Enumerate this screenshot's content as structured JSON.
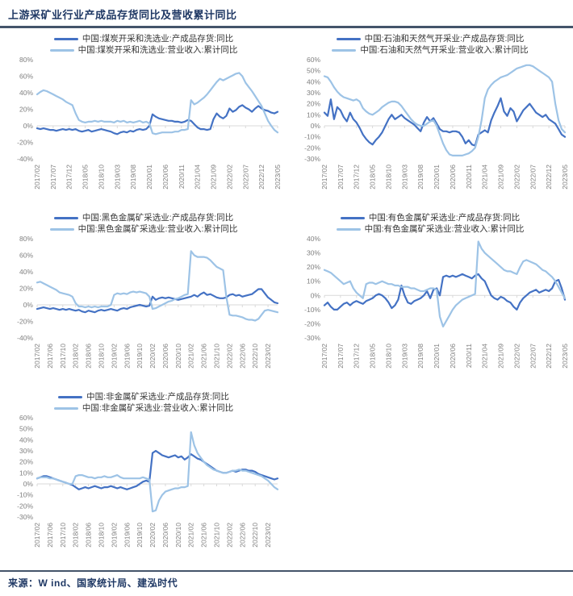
{
  "page": {
    "title": "上游采矿业行业产成品存货同比及营收累计同比",
    "source": "来源：W ind、国家统计局、建泓时代"
  },
  "colors": {
    "inventory_line": "#4472C4",
    "revenue_line": "#9DC3E6",
    "title_text": "#1F3864",
    "rule": "#44546A",
    "axis_text": "#7F7F7F",
    "zero_line": "#D9D9D9"
  },
  "months": [
    "2017/02",
    "2017/03",
    "2017/04",
    "2017/05",
    "2017/06",
    "2017/07",
    "2017/08",
    "2017/09",
    "2017/10",
    "2017/11",
    "2017/12",
    "2018/01",
    "2018/02",
    "2018/03",
    "2018/04",
    "2018/05",
    "2018/06",
    "2018/07",
    "2018/08",
    "2018/09",
    "2018/10",
    "2018/11",
    "2018/12",
    "2019/01",
    "2019/02",
    "2019/03",
    "2019/04",
    "2019/05",
    "2019/06",
    "2019/07",
    "2019/08",
    "2019/09",
    "2019/10",
    "2019/11",
    "2019/12",
    "2020/01",
    "2020/02",
    "2020/03",
    "2020/04",
    "2020/05",
    "2020/06",
    "2020/07",
    "2020/08",
    "2020/09",
    "2020/10",
    "2020/11",
    "2020/12",
    "2021/01",
    "2021/02",
    "2021/03",
    "2021/04",
    "2021/05",
    "2021/06",
    "2021/07",
    "2021/08",
    "2021/09",
    "2021/10",
    "2021/11",
    "2021/12",
    "2022/01",
    "2022/02",
    "2022/03",
    "2022/04",
    "2022/05",
    "2022/06",
    "2022/07",
    "2022/08",
    "2022/09",
    "2022/10",
    "2022/11",
    "2022/12",
    "2023/01",
    "2023/02",
    "2023/03",
    "2023/04",
    "2023/05"
  ],
  "chart_data": [
    {
      "type": "line",
      "industry": "煤炭开采和洗选业",
      "tick_every": 5,
      "ylim": [
        -40,
        80
      ],
      "ytick_step": 20,
      "grid": false,
      "legend_position": "top",
      "series": [
        {
          "name": "中国:煤炭开采和洗选业:产成品存货:同比",
          "color_key": "inventory_line",
          "values": [
            -3,
            -4,
            -3,
            -4,
            -5,
            -5,
            -6,
            -5,
            -4,
            -5,
            -4,
            -5,
            -4,
            -6,
            -7,
            -6,
            -5,
            -7,
            -6,
            -5,
            -4,
            -5,
            -6,
            -7,
            -9,
            -10,
            -8,
            -7,
            -8,
            -6,
            -7,
            -5,
            -4,
            -5,
            -4,
            0,
            14,
            11,
            9,
            8,
            7,
            6,
            6,
            5,
            5,
            4,
            5,
            7,
            6,
            2,
            -2,
            -4,
            -4,
            -5,
            -4,
            8,
            15,
            11,
            9,
            12,
            21,
            17,
            19,
            23,
            25,
            22,
            20,
            17,
            21,
            24,
            21,
            19,
            18,
            16,
            15,
            17
          ]
        },
        {
          "name": "中国:煤炭开采和洗选业:营业收入:累计同比",
          "color_key": "revenue_line",
          "values": [
            38,
            41,
            43,
            42,
            40,
            38,
            36,
            34,
            32,
            29,
            27,
            25,
            15,
            7,
            5,
            4,
            5,
            5,
            6,
            5,
            6,
            5,
            5,
            5,
            4,
            6,
            5,
            6,
            4,
            5,
            4,
            5,
            6,
            4,
            5,
            3,
            -9,
            -10,
            -9,
            -8,
            -8,
            -8,
            -8,
            -7,
            -7,
            -5,
            -5,
            -4,
            31,
            26,
            28,
            31,
            34,
            38,
            43,
            48,
            53,
            57,
            55,
            57,
            59,
            61,
            63,
            64,
            60,
            52,
            47,
            42,
            36,
            30,
            24,
            15,
            6,
            0,
            -5,
            -8
          ]
        }
      ]
    },
    {
      "type": "line",
      "industry": "石油和天然气开采业",
      "tick_every": 5,
      "ylim": [
        -30,
        60
      ],
      "ytick_step": 10,
      "grid": false,
      "legend_position": "top",
      "series": [
        {
          "name": "中国:石油和天然气开采业:产成品存货:同比",
          "color_key": "inventory_line",
          "values": [
            12,
            9,
            24,
            6,
            17,
            14,
            8,
            4,
            12,
            6,
            3,
            -2,
            -8,
            -12,
            -15,
            -17,
            -13,
            -10,
            -6,
            0,
            6,
            10,
            6,
            8,
            10,
            7,
            5,
            3,
            1,
            -2,
            -5,
            3,
            8,
            4,
            7,
            2,
            -3,
            -5,
            -5,
            -6,
            -5,
            -5,
            -6,
            -10,
            -16,
            -13,
            -17,
            -18,
            -8,
            -6,
            -4,
            -6,
            5,
            12,
            18,
            25,
            13,
            9,
            16,
            13,
            4,
            9,
            14,
            17,
            20,
            16,
            12,
            10,
            8,
            10,
            6,
            4,
            2,
            -3,
            -8,
            -10
          ]
        },
        {
          "name": "中国:石油和天然气开采业:营业收入:累计同比",
          "color_key": "revenue_line",
          "values": [
            45,
            44,
            40,
            35,
            31,
            28,
            26,
            25,
            24,
            23,
            24,
            22,
            16,
            13,
            11,
            10,
            12,
            14,
            17,
            19,
            21,
            22,
            22,
            21,
            18,
            14,
            10,
            6,
            3,
            1,
            0,
            0,
            2,
            4,
            5,
            0,
            -8,
            -16,
            -22,
            -26,
            -27,
            -27,
            -27,
            -27,
            -26,
            -25,
            -23,
            -20,
            -10,
            5,
            25,
            33,
            37,
            40,
            42,
            44,
            45,
            46,
            48,
            50,
            52,
            53,
            54,
            55,
            55,
            54,
            52,
            50,
            48,
            46,
            44,
            40,
            20,
            5,
            -3,
            -6
          ]
        }
      ]
    },
    {
      "type": "line",
      "industry": "黑色金属矿采选业",
      "tick_every": 4,
      "ylim": [
        -40,
        80
      ],
      "ytick_step": 20,
      "grid": false,
      "legend_position": "top",
      "series": [
        {
          "name": "中国:黑色金属矿采选业:产成品存货:同比",
          "color_key": "inventory_line",
          "values": [
            -5,
            -4,
            -3,
            -4,
            -5,
            -4,
            -5,
            -6,
            -5,
            -6,
            -5,
            -6,
            -7,
            -6,
            -8,
            -9,
            -7,
            -8,
            -9,
            -7,
            -6,
            -7,
            -6,
            -5,
            -6,
            -7,
            -5,
            -4,
            -5,
            -3,
            -2,
            -1,
            0,
            -1,
            -2,
            -1,
            10,
            6,
            8,
            9,
            8,
            9,
            8,
            7,
            6,
            7,
            8,
            9,
            10,
            12,
            10,
            13,
            15,
            12,
            13,
            11,
            9,
            8,
            8,
            9,
            12,
            13,
            11,
            12,
            10,
            11,
            12,
            13,
            16,
            19,
            19,
            14,
            9,
            6,
            3,
            2
          ]
        },
        {
          "name": "中国:黑色金属矿采选业:营业收入:累计同比",
          "color_key": "revenue_line",
          "values": [
            27,
            28,
            26,
            24,
            22,
            20,
            18,
            15,
            14,
            13,
            12,
            10,
            2,
            -2,
            -2,
            -3,
            -2,
            -3,
            -2,
            -3,
            -2,
            -2,
            -2,
            0,
            12,
            14,
            13,
            14,
            13,
            15,
            16,
            15,
            16,
            15,
            14,
            10,
            -5,
            -4,
            -2,
            0,
            2,
            4,
            5,
            7,
            8,
            10,
            12,
            13,
            65,
            60,
            58,
            58,
            58,
            57,
            54,
            50,
            46,
            44,
            42,
            10,
            -12,
            -13,
            -13,
            -14,
            -15,
            -17,
            -18,
            -18,
            -19,
            -17,
            -12,
            -7,
            -6,
            -7,
            -8,
            -9
          ]
        }
      ]
    },
    {
      "type": "line",
      "industry": "有色金属矿采选业",
      "tick_every": 5,
      "ylim": [
        -30,
        40
      ],
      "ytick_step": 10,
      "grid": false,
      "legend_position": "top",
      "series": [
        {
          "name": "中国:有色金属矿采选业:产成品存货:同比",
          "color_key": "inventory_line",
          "values": [
            -7,
            -5,
            -8,
            -10,
            -10,
            -8,
            -6,
            -5,
            -7,
            -5,
            -4,
            -5,
            -6,
            -4,
            -3,
            -2,
            0,
            1,
            0,
            -2,
            -5,
            -9,
            -7,
            -3,
            7,
            0,
            -5,
            -6,
            -4,
            -3,
            -2,
            0,
            3,
            -2,
            4,
            5,
            0,
            13,
            14,
            13,
            14,
            13,
            14,
            15,
            14,
            13,
            12,
            14,
            15,
            12,
            10,
            5,
            0,
            -2,
            -3,
            -1,
            -2,
            -4,
            -5,
            -8,
            -10,
            -5,
            -2,
            0,
            2,
            3,
            4,
            2,
            3,
            4,
            3,
            5,
            10,
            11,
            5,
            -3
          ]
        },
        {
          "name": "中国:有色金属矿采选业:营业收入:累计同比",
          "color_key": "revenue_line",
          "values": [
            18,
            17,
            16,
            14,
            12,
            10,
            8,
            9,
            10,
            5,
            2,
            0,
            -2,
            8,
            9,
            9,
            8,
            9,
            10,
            9,
            8,
            8,
            7,
            7,
            6,
            6,
            6,
            5,
            5,
            4,
            3,
            3,
            4,
            5,
            5,
            4,
            -15,
            -22,
            -18,
            -14,
            -10,
            -7,
            -5,
            -3,
            -2,
            -1,
            0,
            1,
            38,
            33,
            30,
            28,
            26,
            24,
            22,
            20,
            18,
            17,
            17,
            16,
            15,
            20,
            24,
            25,
            24,
            23,
            22,
            20,
            18,
            17,
            15,
            13,
            10,
            6,
            2,
            -2
          ]
        }
      ]
    },
    {
      "type": "line",
      "industry": "非金属矿采选业",
      "tick_every": 4,
      "ylim": [
        -30,
        60
      ],
      "ytick_step": 10,
      "grid": false,
      "legend_position": "top",
      "series": [
        {
          "name": "中国:非金属矿采选业:产成品存货:同比",
          "color_key": "inventory_line",
          "values": [
            5,
            6,
            7,
            7,
            6,
            5,
            4,
            3,
            2,
            1,
            0,
            -1,
            -3,
            -5,
            -4,
            -3,
            -4,
            -3,
            -2,
            -3,
            -4,
            -3,
            -3,
            -2,
            -3,
            -4,
            -3,
            -4,
            -5,
            -4,
            -3,
            -2,
            0,
            2,
            3,
            2,
            28,
            30,
            28,
            26,
            25,
            24,
            25,
            26,
            24,
            25,
            22,
            24,
            27,
            25,
            23,
            22,
            20,
            18,
            16,
            14,
            12,
            11,
            10,
            10,
            11,
            12,
            11,
            12,
            13,
            13,
            12,
            12,
            11,
            9,
            8,
            7,
            6,
            5,
            4,
            5
          ]
        },
        {
          "name": "中国:非金属矿采选业:营业收入:累计同比",
          "color_key": "revenue_line",
          "values": [
            5,
            6,
            6,
            6,
            5,
            5,
            4,
            3,
            2,
            1,
            0,
            0,
            7,
            8,
            8,
            7,
            6,
            6,
            5,
            6,
            6,
            7,
            6,
            6,
            7,
            8,
            6,
            5,
            5,
            5,
            5,
            5,
            5,
            6,
            5,
            4,
            -25,
            -24,
            -15,
            -10,
            -7,
            -6,
            -5,
            -4,
            -4,
            -3,
            -3,
            -2,
            47,
            35,
            28,
            24,
            20,
            17,
            15,
            13,
            12,
            11,
            10,
            10,
            11,
            12,
            12,
            13,
            12,
            12,
            11,
            10,
            9,
            8,
            7,
            5,
            3,
            0,
            -3,
            -5
          ]
        }
      ]
    }
  ]
}
